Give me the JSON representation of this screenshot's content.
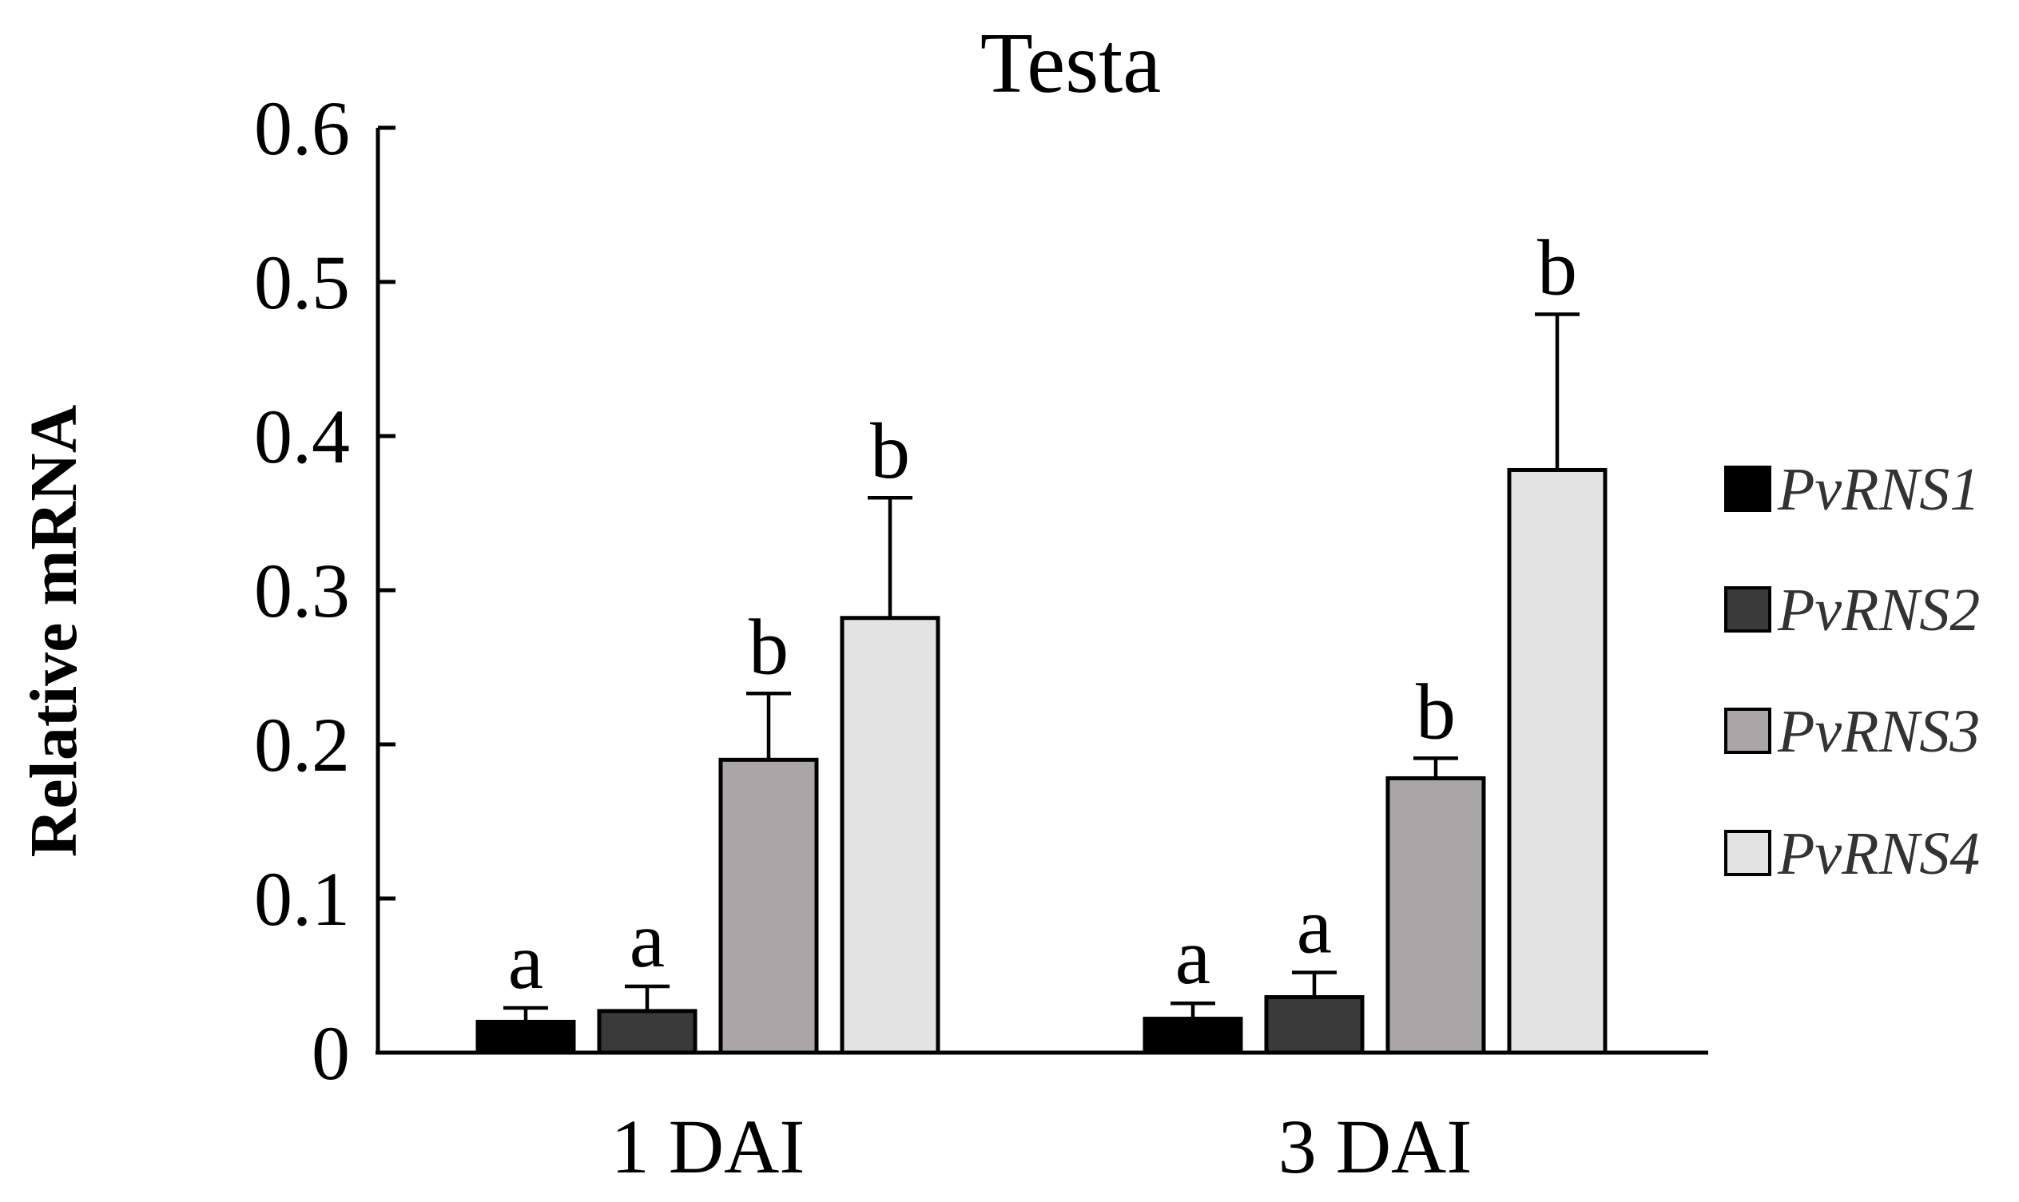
{
  "chart_data": {
    "type": "bar",
    "title": "Testa",
    "xlabel": "",
    "ylabel": "Relative mRNA",
    "ylim": [
      0,
      0.6
    ],
    "yticks": [
      0,
      0.1,
      0.2,
      0.3,
      0.4,
      0.5,
      0.6
    ],
    "ytick_labels": [
      "0",
      "0.1",
      "0.2",
      "0.3",
      "0.4",
      "0.5",
      "0.6"
    ],
    "categories": [
      "1 DAI",
      "3 DAI"
    ],
    "grid": false,
    "legend_position": "right",
    "series": [
      {
        "name": "PvRNS1",
        "color": "#000000",
        "values": [
          0.02,
          0.022
        ],
        "errors": [
          0.009,
          0.01
        ],
        "sig": [
          "a",
          "a"
        ]
      },
      {
        "name": "PvRNS2",
        "color": "#3a3a3a",
        "values": [
          0.027,
          0.036
        ],
        "errors": [
          0.016,
          0.016
        ],
        "sig": [
          "a",
          "a"
        ]
      },
      {
        "name": "PvRNS3",
        "color": "#a8a6a6",
        "values": [
          0.19,
          0.178
        ],
        "errors": [
          0.043,
          0.013
        ],
        "sig": [
          "b",
          "b"
        ]
      },
      {
        "name": "PvRNS4",
        "color": "#e3e3e3",
        "values": [
          0.282,
          0.378
        ],
        "errors": [
          0.078,
          0.101
        ],
        "sig": [
          "b",
          "b"
        ]
      }
    ]
  }
}
